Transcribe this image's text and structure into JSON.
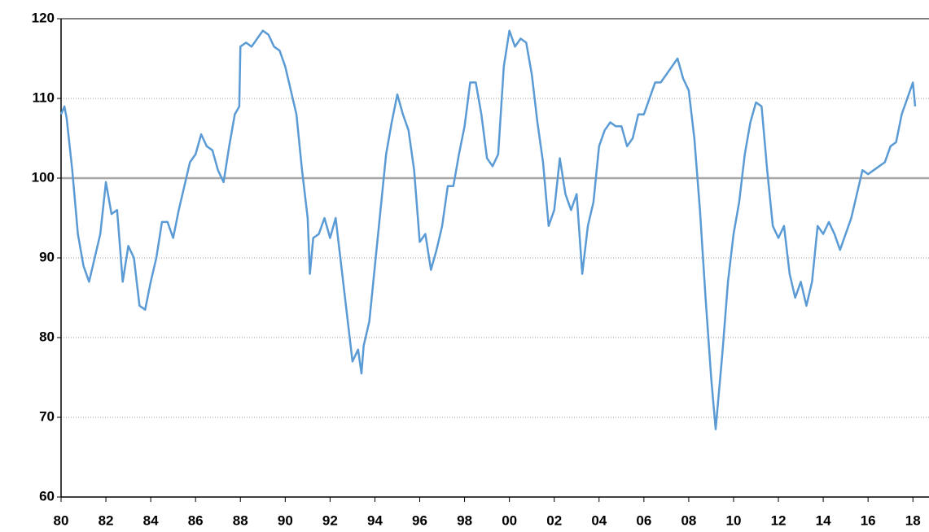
{
  "chart_data": {
    "type": "line",
    "color": "#5b9bd5",
    "grid": true,
    "hline": 100,
    "xlim": [
      1980,
      2018.5
    ],
    "ylim": [
      60,
      120
    ],
    "yticks": [
      60,
      70,
      80,
      90,
      100,
      110,
      120
    ],
    "xticks": [
      {
        "value": 1980,
        "label": "80"
      },
      {
        "value": 1982,
        "label": "82"
      },
      {
        "value": 1984,
        "label": "84"
      },
      {
        "value": 1986,
        "label": "86"
      },
      {
        "value": 1988,
        "label": "88"
      },
      {
        "value": 1990,
        "label": "90"
      },
      {
        "value": 1992,
        "label": "92"
      },
      {
        "value": 1994,
        "label": "94"
      },
      {
        "value": 1996,
        "label": "96"
      },
      {
        "value": 1998,
        "label": "98"
      },
      {
        "value": 2000,
        "label": "00"
      },
      {
        "value": 2002,
        "label": "02"
      },
      {
        "value": 2004,
        "label": "04"
      },
      {
        "value": 2006,
        "label": "06"
      },
      {
        "value": 2008,
        "label": "08"
      },
      {
        "value": 2010,
        "label": "10"
      },
      {
        "value": 2012,
        "label": "12"
      },
      {
        "value": 2014,
        "label": "14"
      },
      {
        "value": 2016,
        "label": "16"
      },
      {
        "value": 2018,
        "label": "18"
      }
    ],
    "x": [
      1980,
      1980.15,
      1980.25,
      1980.5,
      1980.75,
      1981,
      1981.25,
      1981.5,
      1981.75,
      1982,
      1982.25,
      1982.5,
      1982.75,
      1983,
      1983.25,
      1983.5,
      1983.75,
      1984,
      1984.25,
      1984.5,
      1984.75,
      1985,
      1985.25,
      1985.5,
      1985.75,
      1986,
      1986.25,
      1986.5,
      1986.75,
      1987,
      1987.25,
      1987.5,
      1987.75,
      1987.95,
      1988,
      1988.25,
      1988.5,
      1988.75,
      1989,
      1989.25,
      1989.5,
      1989.75,
      1990,
      1990.25,
      1990.5,
      1990.75,
      1991,
      1991.1,
      1991.25,
      1991.5,
      1991.75,
      1992,
      1992.25,
      1992.5,
      1992.75,
      1993,
      1993.25,
      1993.4,
      1993.5,
      1993.75,
      1994,
      1994.25,
      1994.5,
      1994.75,
      1995,
      1995.25,
      1995.5,
      1995.75,
      1996,
      1996.25,
      1996.5,
      1996.75,
      1997,
      1997.25,
      1997.5,
      1997.75,
      1998,
      1998.25,
      1998.5,
      1998.75,
      1999,
      1999.25,
      1999.5,
      1999.75,
      2000,
      2000.25,
      2000.5,
      2000.75,
      2001,
      2001.25,
      2001.5,
      2001.75,
      2002,
      2002.25,
      2002.5,
      2002.75,
      2003,
      2003.25,
      2003.5,
      2003.75,
      2004,
      2004.25,
      2004.5,
      2004.75,
      2005,
      2005.25,
      2005.5,
      2005.75,
      2006,
      2006.25,
      2006.5,
      2006.75,
      2007,
      2007.25,
      2007.5,
      2007.75,
      2008,
      2008.25,
      2008.5,
      2008.75,
      2009,
      2009.2,
      2009.5,
      2009.75,
      2010,
      2010.25,
      2010.5,
      2010.75,
      2011,
      2011.25,
      2011.5,
      2011.75,
      2012,
      2012.25,
      2012.5,
      2012.75,
      2013,
      2013.25,
      2013.5,
      2013.75,
      2014,
      2014.25,
      2014.5,
      2014.75,
      2015,
      2015.25,
      2015.5,
      2015.75,
      2016,
      2016.25,
      2016.5,
      2016.75,
      2017,
      2017.25,
      2017.5,
      2017.75,
      2018,
      2018.1
    ],
    "values": [
      108,
      109,
      107.5,
      101,
      93,
      89,
      87,
      90,
      93,
      99.5,
      95.5,
      96,
      87,
      91.5,
      90,
      84,
      83.5,
      87,
      90,
      94.5,
      94.5,
      92.5,
      96,
      99,
      102,
      103,
      105.5,
      104,
      103.5,
      101,
      99.5,
      104,
      108,
      109,
      116.5,
      117,
      116.5,
      117.5,
      118.5,
      118,
      116.5,
      116,
      114,
      111,
      108,
      101,
      95,
      88,
      92.5,
      93,
      95,
      92.5,
      95,
      89,
      83,
      77,
      78.5,
      75.5,
      79,
      82,
      89,
      96,
      103,
      107,
      110.5,
      108,
      106,
      101,
      92,
      93,
      88.5,
      91,
      94,
      99,
      99,
      103,
      106.5,
      112,
      112,
      108,
      102.5,
      101.5,
      103,
      114,
      118.5,
      116.5,
      117.5,
      117,
      113,
      107,
      102,
      94,
      96,
      102.5,
      98,
      96,
      98,
      88,
      94,
      97,
      104,
      106,
      107,
      106.5,
      106.5,
      104,
      105,
      108,
      108,
      110,
      112,
      112,
      113,
      114,
      115,
      112.5,
      111,
      105,
      96,
      85,
      75,
      68.5,
      78,
      87,
      93,
      97,
      103,
      107,
      109.5,
      109,
      101,
      94,
      92.5,
      94,
      88,
      85,
      87,
      84,
      87,
      94,
      93,
      94.5,
      93,
      91,
      93,
      95,
      98,
      101,
      100.5,
      101,
      101.5,
      102,
      104,
      104.5,
      108,
      110,
      112,
      109
    ]
  }
}
